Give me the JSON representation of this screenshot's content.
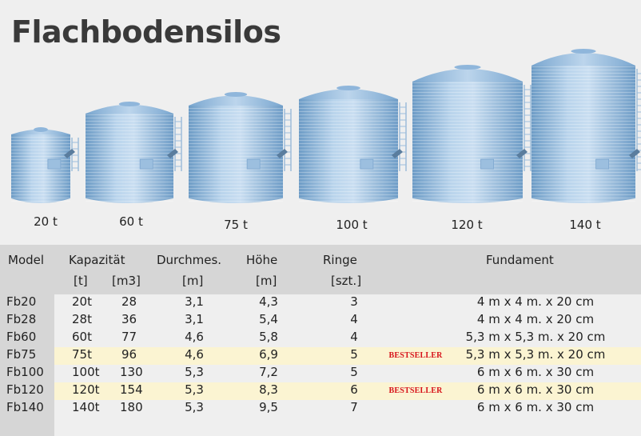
{
  "title": "Flachbodensilos",
  "silos": [
    {
      "label": "20 t"
    },
    {
      "label": "60 t"
    },
    {
      "label": "75 t"
    },
    {
      "label": "100 t"
    },
    {
      "label": "120 t"
    },
    {
      "label": "140 t"
    }
  ],
  "table": {
    "headers": [
      "Model",
      "Kapazität",
      "Durchmes.",
      "Höhe",
      "Ringe",
      "Fundament"
    ],
    "units": [
      "[t]",
      "[m3]",
      "[m]",
      "[m]",
      "[szt.]"
    ],
    "rows": [
      {
        "model": "Fb20",
        "t": "20t",
        "m3": "28",
        "d": "3,1",
        "h": "4,3",
        "r": "3",
        "badge": "",
        "f": "4 m x 4 m. x 20 cm"
      },
      {
        "model": "Fb28",
        "t": "28t",
        "m3": "36",
        "d": "3,1",
        "h": "5,4",
        "r": "4",
        "badge": "",
        "f": "4 m x 4 m. x 20 cm"
      },
      {
        "model": "Fb60",
        "t": "60t",
        "m3": "77",
        "d": "4,6",
        "h": "5,8",
        "r": "4",
        "badge": "",
        "f": "5,3 m x 5,3 m. x 20 cm"
      },
      {
        "model": "Fb75",
        "t": "75t",
        "m3": "96",
        "d": "4,6",
        "h": "6,9",
        "r": "5",
        "badge": "BESTSELLER",
        "f": "5,3 m x 5,3 m. x 20 cm"
      },
      {
        "model": "Fb100",
        "t": "100t",
        "m3": "130",
        "d": "5,3",
        "h": "7,2",
        "r": "5",
        "badge": "",
        "f": "6 m x 6 m. x 30 cm"
      },
      {
        "model": "Fb120",
        "t": "120t",
        "m3": "154",
        "d": "5,3",
        "h": "8,3",
        "r": "6",
        "badge": "BESTSELLER",
        "f": "6 m x 6 m. x 30 cm"
      },
      {
        "model": "Fb140",
        "t": "140t",
        "m3": "180",
        "d": "5,3",
        "h": "9,5",
        "r": "7",
        "badge": "",
        "f": "6 m x 6 m. x 30 cm"
      }
    ]
  }
}
